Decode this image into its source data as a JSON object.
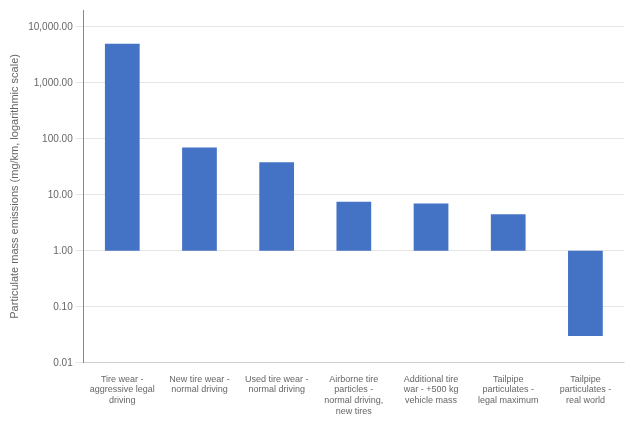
{
  "chart_data": {
    "type": "bar",
    "categories": [
      "Tire wear -\naggressive legal\ndriving",
      "New tire wear -\nnormal driving",
      "Used tire wear -\nnormal driving",
      "Airborne tire\nparticles -\nnormal driving,\nnew tires",
      "Additional tire\nwar - +500 kg\nvehicle mass",
      "Tailpipe\nparticulates -\nlegal maximum",
      "Tailpipe\nparticulates -\nreal world"
    ],
    "values": [
      5000,
      70,
      38,
      7.5,
      7.0,
      4.5,
      1.0
    ],
    "bottoms": [
      1,
      1,
      1,
      1,
      1,
      1,
      0.03
    ],
    "color": "#4472c4",
    "ylabel": "Particulate mass emissions (mg/km, logarithmic scale)",
    "log": "y",
    "ylim": [
      0.01,
      20000
    ],
    "yticks": [
      0.01,
      {
        "value": 0.1,
        "label": "0.10"
      },
      {
        "value": 1,
        "label": "1.00"
      },
      {
        "value": 10,
        "label": "10.00"
      },
      {
        "value": 100,
        "label": "100.00"
      },
      {
        "value": 1000,
        "label": "1,000.00"
      },
      {
        "value": 10000,
        "label": "10,000.00"
      }
    ],
    "grid": true
  }
}
